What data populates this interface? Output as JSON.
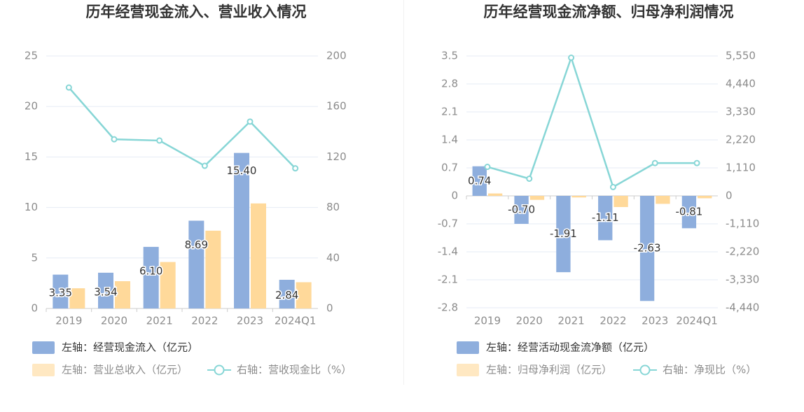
{
  "colors": {
    "bar_primary": "#8eaedd",
    "bar_secondary": "#ffd99a",
    "line": "#87d6d6",
    "grid": "#e6ebf5",
    "axis": "#cccccc"
  },
  "chart_data": [
    {
      "type": "bar",
      "title": "历年经营现金流入、营业收入情况",
      "categories": [
        "2019",
        "2020",
        "2021",
        "2022",
        "2023",
        "2024Q1"
      ],
      "left_axis": {
        "ticks": [
          "25",
          "20",
          "15",
          "10",
          "5",
          "0"
        ],
        "ylim": [
          0,
          25
        ]
      },
      "right_axis": {
        "ticks": [
          "200",
          "160",
          "120",
          "80",
          "40",
          "0"
        ],
        "ylim": [
          0,
          200
        ]
      },
      "series": [
        {
          "name": "左轴：经营现金流入（亿元）",
          "axis": "left",
          "kind": "bar",
          "values": [
            3.35,
            3.54,
            6.1,
            8.69,
            15.4,
            2.84
          ],
          "labels": [
            "3.35",
            "3.54",
            "6.10",
            "8.69",
            "15.40",
            "2.84"
          ]
        },
        {
          "name": "左轴：营业总收入（亿元）",
          "axis": "left",
          "kind": "bar",
          "values": [
            2.0,
            2.7,
            4.6,
            7.7,
            10.4,
            2.6
          ]
        },
        {
          "name": "右轴：营收现金比（%）",
          "axis": "right",
          "kind": "line",
          "values": [
            175,
            134,
            133,
            113,
            148,
            111
          ]
        }
      ]
    },
    {
      "type": "bar",
      "title": "历年经营现金流净额、归母净利润情况",
      "categories": [
        "2019",
        "2020",
        "2021",
        "2022",
        "2023",
        "2024Q1"
      ],
      "left_axis": {
        "ticks": [
          "3.5",
          "2.8",
          "2.1",
          "1.4",
          "0.7",
          "0",
          "-0.7",
          "-1.4",
          "-2.1",
          "-2.8"
        ],
        "ylim": [
          -2.8,
          3.5
        ]
      },
      "right_axis": {
        "ticks": [
          "5,550",
          "4,440",
          "3,330",
          "2,220",
          "1,110",
          "0",
          "-1,110",
          "-2,220",
          "-3,330",
          "-4,440"
        ],
        "ylim": [
          -4440,
          5550
        ]
      },
      "series": [
        {
          "name": "左轴：经营活动现金流净额（亿元）",
          "axis": "left",
          "kind": "bar",
          "values": [
            0.74,
            -0.7,
            -1.91,
            -1.11,
            -2.63,
            -0.81
          ],
          "labels": [
            "0.74",
            "-0.70",
            "-1.91",
            "-1.11",
            "-2.63",
            "-0.81"
          ]
        },
        {
          "name": "左轴：归母净利润（亿元）",
          "axis": "left",
          "kind": "bar",
          "values": [
            0.06,
            -0.1,
            -0.04,
            -0.28,
            -0.2,
            -0.06
          ]
        },
        {
          "name": "右轴：净现比（%）",
          "axis": "right",
          "kind": "line",
          "values": [
            1150,
            680,
            5480,
            350,
            1300,
            1300
          ]
        }
      ]
    }
  ]
}
